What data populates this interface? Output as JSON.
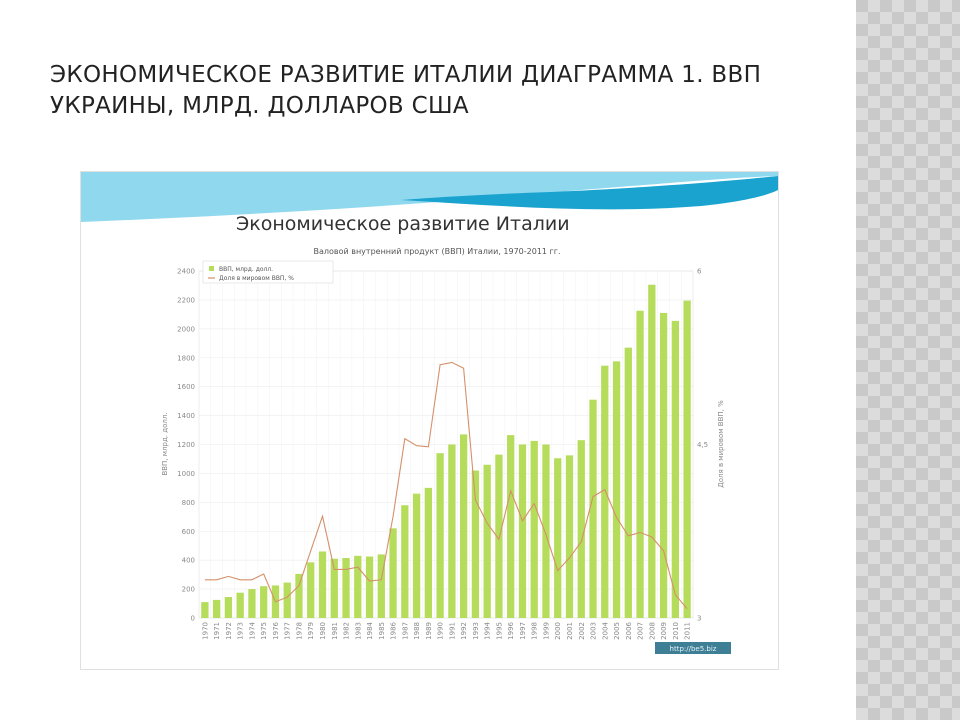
{
  "slide": {
    "title": "Экономическое развитие Италии Диаграмма 1. ВВП Украины, млрд. долларов США"
  },
  "colors": {
    "bar": "#b6dc5c",
    "line": "#d4906a",
    "wave_dark": "#1aa3cf",
    "wave_light": "#8fd8ee"
  },
  "chart_data": {
    "type": "bar",
    "banner_title": "Экономическое развитие Италии",
    "title": "Валовой внутренний продукт (ВВП) Италии, 1970-2011 гг.",
    "ylabel": "ВВП, млрд. долл.",
    "y2label": "Доля в мировом ВВП, %",
    "ylim": [
      0,
      2400
    ],
    "y2lim": [
      3,
      6
    ],
    "yticks": [
      0,
      200,
      400,
      600,
      800,
      1000,
      1200,
      1400,
      1600,
      1800,
      2000,
      2200,
      2400
    ],
    "y2ticks": [
      "3",
      "4,5",
      "6"
    ],
    "grid": true,
    "legend_position": "top-left",
    "watermark": "http://be5.biz",
    "categories": [
      "1970",
      "1971",
      "1972",
      "1973",
      "1974",
      "1975",
      "1976",
      "1977",
      "1978",
      "1979",
      "1980",
      "1981",
      "1982",
      "1983",
      "1984",
      "1985",
      "1986",
      "1987",
      "1988",
      "1989",
      "1990",
      "1991",
      "1992",
      "1993",
      "1994",
      "1995",
      "1996",
      "1997",
      "1998",
      "1999",
      "2000",
      "2001",
      "2002",
      "2003",
      "2004",
      "2005",
      "2006",
      "2007",
      "2008",
      "2009",
      "2010",
      "2011"
    ],
    "series": [
      {
        "name": "ВВП, млрд. долл.",
        "type": "bar",
        "axis": "left",
        "values": [
          110,
          125,
          145,
          175,
          200,
          220,
          225,
          245,
          305,
          385,
          460,
          410,
          415,
          430,
          425,
          440,
          620,
          780,
          860,
          900,
          1140,
          1200,
          1270,
          1020,
          1060,
          1130,
          1265,
          1200,
          1225,
          1200,
          1105,
          1125,
          1230,
          1510,
          1745,
          1775,
          1870,
          2125,
          2305,
          2110,
          2055,
          2195
        ]
      },
      {
        "name": "Доля в мировом ВВП, %",
        "type": "line",
        "axis": "right",
        "values": [
          3.33,
          3.33,
          3.36,
          3.33,
          3.33,
          3.38,
          3.14,
          3.18,
          3.28,
          3.58,
          3.88,
          3.42,
          3.42,
          3.44,
          3.32,
          3.33,
          3.88,
          4.55,
          4.49,
          4.48,
          5.19,
          5.21,
          5.16,
          4.02,
          3.82,
          3.68,
          4.1,
          3.84,
          3.99,
          3.72,
          3.41,
          3.52,
          3.66,
          4.05,
          4.11,
          3.87,
          3.71,
          3.74,
          3.7,
          3.58,
          3.2,
          3.08
        ]
      }
    ]
  }
}
